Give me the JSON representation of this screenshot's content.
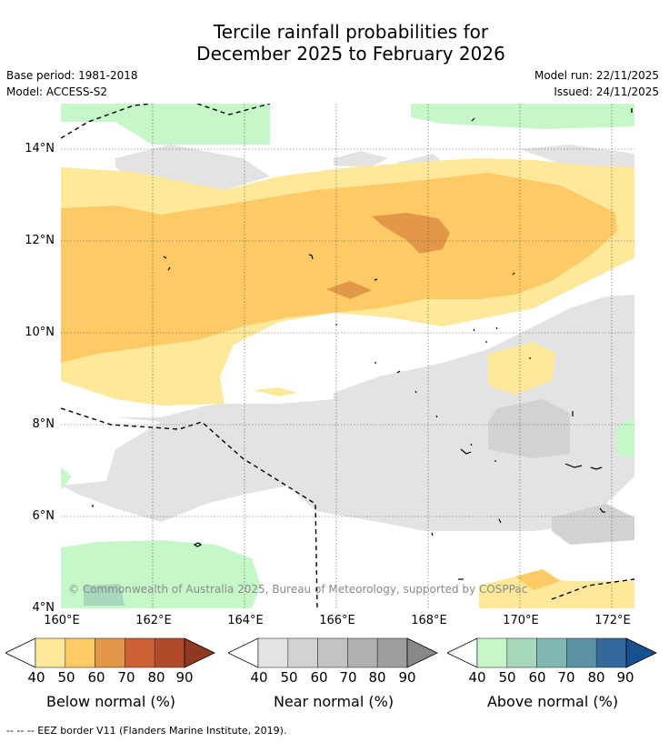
{
  "title_line1": "Tercile rainfall probabilities for",
  "title_line2": "December 2025 to February 2026",
  "base_period": "Base period: 1981-2018",
  "model": "Model: ACCESS-S2",
  "model_run": "Model run: 22/11/2025",
  "issued": "Issued: 24/11/2025",
  "copyright": "© Commonwealth of Australia 2025, Bureau of Meteorology, supported by COSPPac",
  "lat_labels": [
    "14°N",
    "12°N",
    "10°N",
    "8°N",
    "6°N",
    "4°N"
  ],
  "lon_labels": [
    "160°E",
    "162°E",
    "164°E",
    "166°E",
    "168°E",
    "170°E",
    "172°E"
  ],
  "colorbars": [
    {
      "label": "Below normal (%)",
      "ticks": [
        "40",
        "50",
        "60",
        "70",
        "80",
        "90"
      ],
      "colors": [
        "#fee89a",
        "#fdca66",
        "#e39748",
        "#cd6134",
        "#b04a28",
        "#8f3a20"
      ]
    },
    {
      "label": "Near normal (%)",
      "ticks": [
        "40",
        "50",
        "60",
        "70",
        "80",
        "90"
      ],
      "colors": [
        "#e3e3e3",
        "#d2d2d2",
        "#c3c3c3",
        "#b0b0b0",
        "#9e9e9e",
        "#888888"
      ]
    },
    {
      "label": "Above normal (%)",
      "ticks": [
        "40",
        "50",
        "60",
        "70",
        "80",
        "90"
      ],
      "colors": [
        "#c6f7c9",
        "#a6d8bc",
        "#82b8b3",
        "#5a93a3",
        "#33699a",
        "#17508f"
      ]
    }
  ],
  "footer": "--  --  -- EEZ border V11 (Flanders Marine Institute, 2019)."
}
